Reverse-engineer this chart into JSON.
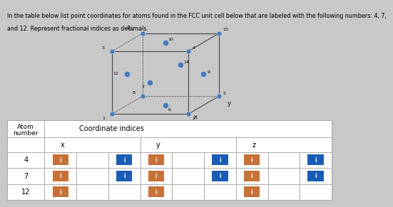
{
  "title_line1": "In the table below list point coordinates for atoms found in the FCC unit cell below that are labeled with the following numbers: 4, 7,",
  "title_line2": "and 12. Represent fractional indices as decimals.",
  "title_fontsize": 5.8,
  "rows": [
    {
      "label": "4",
      "cells": [
        {
          "color": "#c87137",
          "has_icon": true
        },
        {
          "color": "#ffffff",
          "has_icon": false
        },
        {
          "color": "#1a5cb5",
          "has_icon": true
        },
        {
          "color": "#c87137",
          "has_icon": true
        },
        {
          "color": "#ffffff",
          "has_icon": false
        },
        {
          "color": "#1a5cb5",
          "has_icon": true
        },
        {
          "color": "#c87137",
          "has_icon": true
        },
        {
          "color": "#ffffff",
          "has_icon": false
        },
        {
          "color": "#1a5cb5",
          "has_icon": true
        }
      ]
    },
    {
      "label": "7",
      "cells": [
        {
          "color": "#c87137",
          "has_icon": true
        },
        {
          "color": "#ffffff",
          "has_icon": false
        },
        {
          "color": "#1a5cb5",
          "has_icon": true
        },
        {
          "color": "#c87137",
          "has_icon": true
        },
        {
          "color": "#ffffff",
          "has_icon": false
        },
        {
          "color": "#1a5cb5",
          "has_icon": true
        },
        {
          "color": "#c87137",
          "has_icon": true
        },
        {
          "color": "#ffffff",
          "has_icon": false
        },
        {
          "color": "#1a5cb5",
          "has_icon": true
        }
      ]
    },
    {
      "label": "12",
      "cells": [
        {
          "color": "#c87137",
          "has_icon": true
        },
        {
          "color": "#ffffff",
          "has_icon": false
        },
        {
          "color": "#ffffff",
          "has_icon": false
        },
        {
          "color": "#c87137",
          "has_icon": true
        },
        {
          "color": "#ffffff",
          "has_icon": false
        },
        {
          "color": "#ffffff",
          "has_icon": false
        },
        {
          "color": "#c87137",
          "has_icon": true
        },
        {
          "color": "#ffffff",
          "has_icon": false
        },
        {
          "color": "#ffffff",
          "has_icon": false
        }
      ]
    }
  ],
  "bg_color": "#c8c8c8",
  "orange": "#c87137",
  "blue": "#1a5cb5",
  "white": "#ffffff",
  "border_color": "#999999",
  "table_bg": "#e8e8e8"
}
